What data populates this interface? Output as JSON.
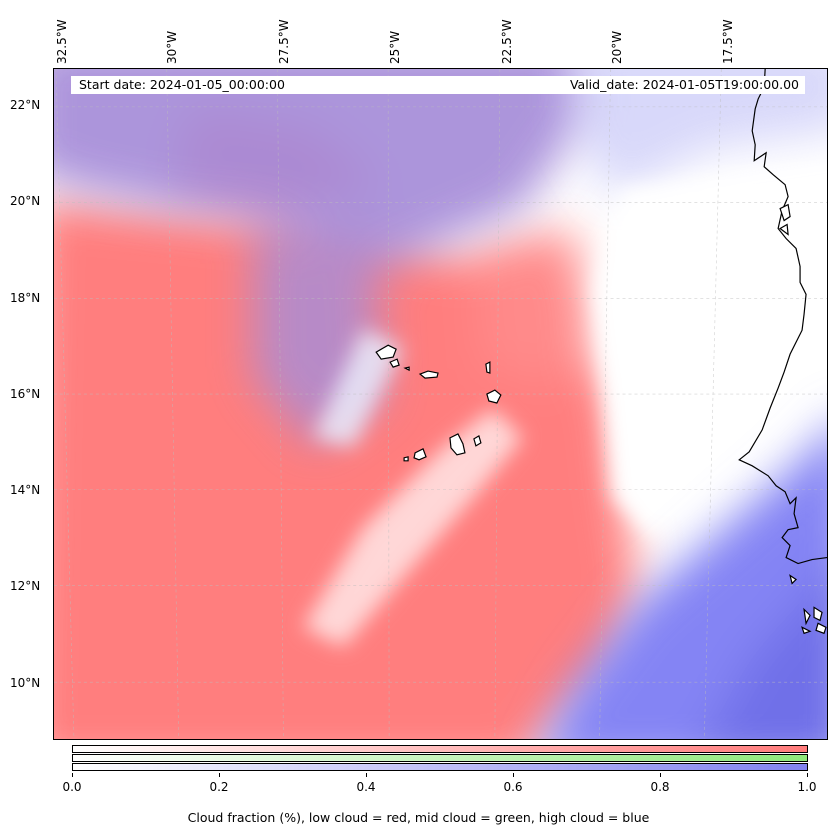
{
  "map": {
    "lon_labels": [
      "32.5°W",
      "30°W",
      "27.5°W",
      "25°W",
      "22.5°W",
      "20°W",
      "17.5°W"
    ],
    "lat_labels": [
      "22°N",
      "20°N",
      "18°N",
      "16°N",
      "14°N",
      "12°N",
      "10°N"
    ],
    "start_date": "Start date: 2024-01-05_00:00:00",
    "valid_date": "Valid_date: 2024-01-05T19:00:00.00"
  },
  "colorbar": {
    "ticks": [
      "0.0",
      "0.2",
      "0.4",
      "0.6",
      "0.8",
      "1.0"
    ],
    "label": "Cloud fraction (%), low cloud = red, mid cloud = green, high cloud = blue",
    "low_color": "#ff7b7b",
    "mid_color": "#8ee87a",
    "high_color": "#8282f0"
  }
}
